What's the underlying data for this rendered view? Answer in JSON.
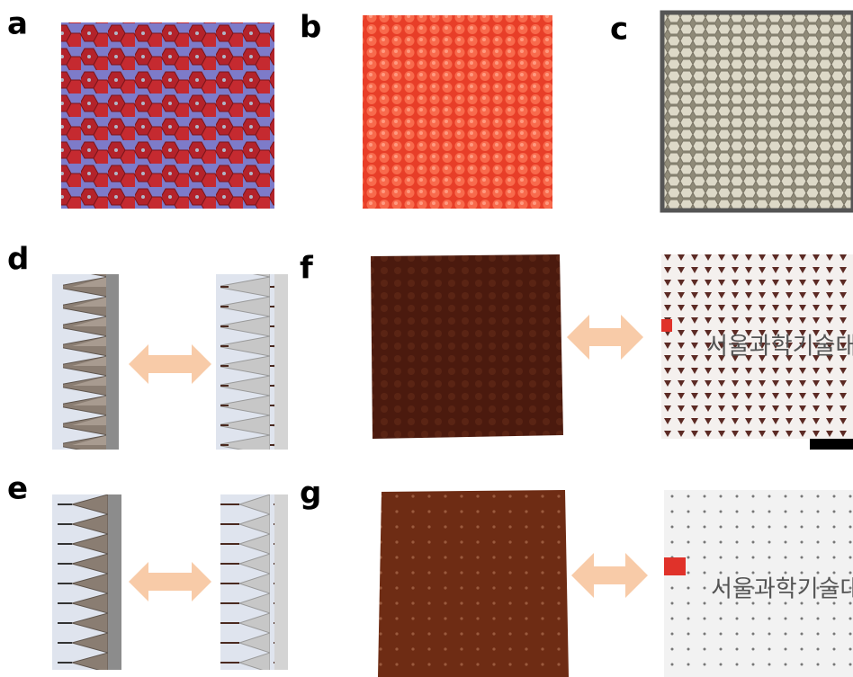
{
  "panels": [
    {
      "label": "a"
    },
    {
      "label": "b"
    },
    {
      "label": "c"
    },
    {
      "label": "d"
    },
    {
      "label": "f"
    },
    {
      "label": "e"
    },
    {
      "label": "g"
    }
  ],
  "photo_texts": [
    "서울과학기술대",
    "서울과학기술대"
  ]
}
